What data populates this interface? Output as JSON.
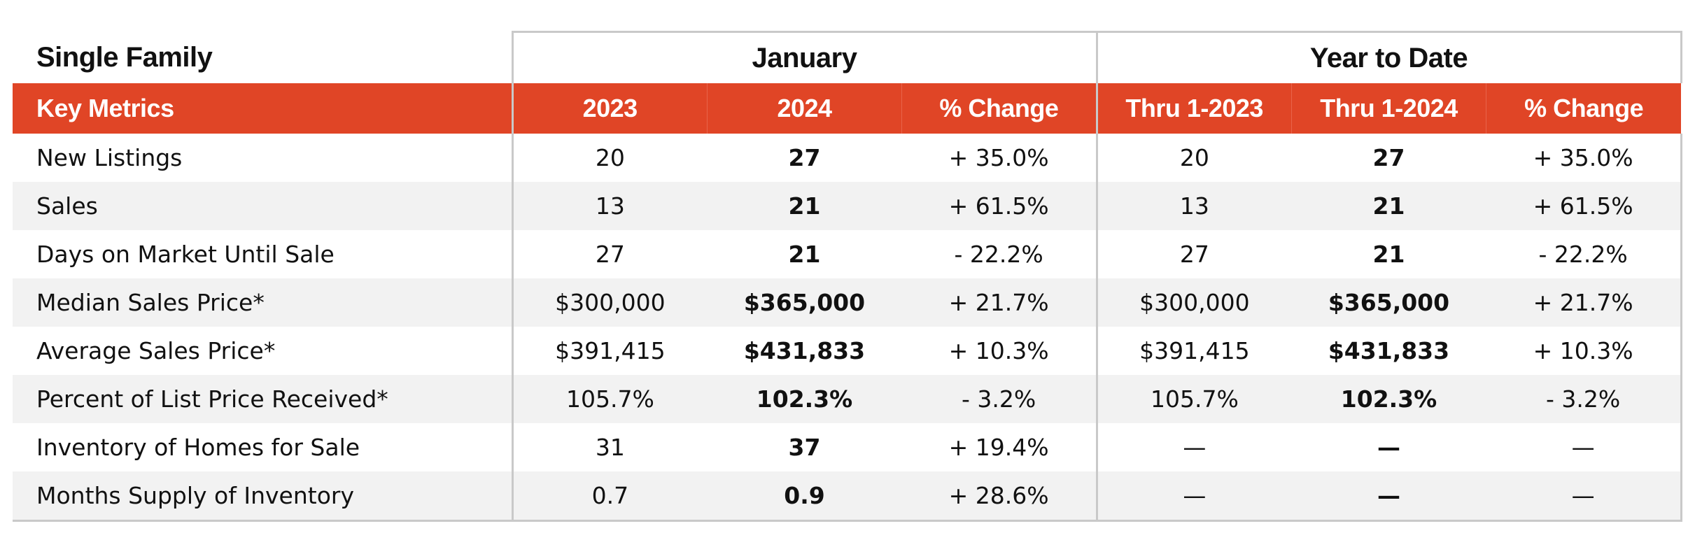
{
  "table_title": "Single Family",
  "group_headers": [
    "January",
    "Year to Date"
  ],
  "column_headers": [
    "Key Metrics",
    "2023",
    "2024",
    "% Change",
    "Thru 1-2023",
    "Thru 1-2024",
    "% Change"
  ],
  "rows": [
    {
      "metric": "New Listings",
      "values": [
        "20",
        "27",
        "+ 35.0%",
        "20",
        "27",
        "+ 35.0%"
      ]
    },
    {
      "metric": "Sales",
      "values": [
        "13",
        "21",
        "+ 61.5%",
        "13",
        "21",
        "+ 61.5%"
      ]
    },
    {
      "metric": "Days on Market Until Sale",
      "values": [
        "27",
        "21",
        "- 22.2%",
        "27",
        "21",
        "- 22.2%"
      ]
    },
    {
      "metric": "Median Sales Price*",
      "values": [
        "$300,000",
        "$365,000",
        "+ 21.7%",
        "$300,000",
        "$365,000",
        "+ 21.7%"
      ]
    },
    {
      "metric": "Average Sales Price*",
      "values": [
        "$391,415",
        "$431,833",
        "+ 10.3%",
        "$391,415",
        "$431,833",
        "+ 10.3%"
      ]
    },
    {
      "metric": "Percent of List Price Received*",
      "values": [
        "105.7%",
        "102.3%",
        "- 3.2%",
        "105.7%",
        "102.3%",
        "- 3.2%"
      ]
    },
    {
      "metric": "Inventory of Homes for Sale",
      "values": [
        "31",
        "37",
        "+ 19.4%",
        "—",
        "—",
        "—"
      ]
    },
    {
      "metric": "Months Supply of Inventory",
      "values": [
        "0.7",
        "0.9",
        "+ 28.6%",
        "—",
        "—",
        "—"
      ]
    }
  ],
  "colors": {
    "header_band": "#e04526",
    "stripe": "#f2f2f2",
    "border": "#c9c9c9"
  }
}
